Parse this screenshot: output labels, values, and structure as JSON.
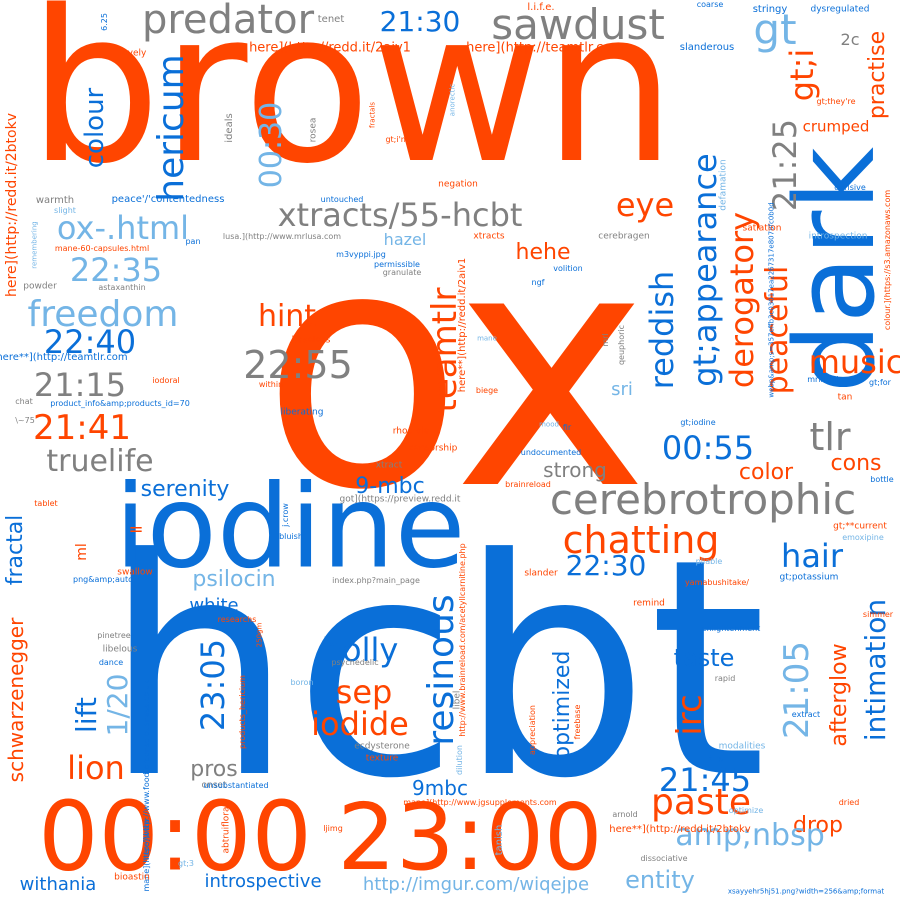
{
  "palette": {
    "orange": "#ff4500",
    "blue": "#0a6fd8",
    "gray": "#808080",
    "light_blue": "#74b5e6"
  },
  "words": {
    "brown": "brown",
    "ox": "ox",
    "hcbt": "hcbt",
    "iodine": "iodine",
    "dark": "dark",
    "t0000": "00:00",
    "t2300": "23:00",
    "predator": "predator",
    "sawdust": "sawdust",
    "t2130": "21:30",
    "gt": "gt",
    "gt_i": "gt;i",
    "hericum": "hericum",
    "colour": "colour",
    "t0030": "00:30",
    "xtracts": "xtracts/55-hcbt",
    "ox_html": "ox-.html",
    "eye": "eye",
    "t2125": "21:25",
    "t2235": "22:35",
    "freedom": "freedom",
    "t2240": "22:40",
    "hint": "hint",
    "t2255": "22:55",
    "teamtlr": "teamtlr",
    "reddish": "reddish",
    "gt_appearance": "gt;appearance",
    "derogatory": "derogatory",
    "peaceful": "peaceful",
    "music": "music",
    "practise": "practise",
    "crumped": "crumped",
    "t2115": "21:15",
    "t2141": "21:41",
    "truelife": "truelife",
    "tlr": "tlr",
    "t0055": "00:55",
    "cons": "cons",
    "color": "color",
    "serenity": "serenity",
    "mbc_9": "9-mbc",
    "cerebrotrophic": "cerebrotrophic",
    "chatting": "chatting",
    "t2230": "22:30",
    "hair": "hair",
    "psilocin": "psilocin",
    "white": "white",
    "holly": "holly",
    "sep": "sep",
    "iodide": "iodide",
    "resinous": "resinous",
    "irc": "irc",
    "optimized": "optimized",
    "taste": "taste",
    "t2105": "21:05",
    "intimation": "intimation",
    "afterglow": "afterglow",
    "t2305": "23:05",
    "lift": "lift",
    "one_20": "1/20",
    "lion": "lion",
    "fractal": "fractal",
    "schwarzenegger": "schwarzenegger",
    "pros": "pros",
    "mbc9": "9mbc",
    "paste": "paste",
    "t2145": "21:45",
    "drop": "drop",
    "amp_nbsp": "amp;nbsp",
    "entity": "entity",
    "introspective": "introspective",
    "withania": "withania",
    "imgur": "http://imgur.com/wiqejpe",
    "strong": "strong",
    "hazel": "hazel",
    "hehe": "hehe",
    "sri": "sri",
    "ml": "ml",
    "eq": "=",
    "twoc": "2c",
    "here_2aiv1_a": "here](http://redd.it/2aiv1",
    "here_teamtlr_a": "here](http://teamtlr.com",
    "here_2btokv_v": "here](http://redd.it/2btokv",
    "here_2aiv1_v": "here**](http://redd.it/2aiv1",
    "here_teamtlr_b": "here**](http://teamtlr.com",
    "here_2btokv_b": "here**](http://redd.it/2btokv",
    "tenet": "tenet",
    "life": "l.i.f.e.",
    "coarse": "coarse",
    "stringy": "stringy",
    "dysregulated": "dysregulated",
    "slanderous": "slanderous",
    "lovely": "lovely",
    "six25": "6.25",
    "gt_theyre": "gt;they're",
    "gt_im": "gt;i'm",
    "ideals": "ideals",
    "rosea": "rosea",
    "fractals": "fractals",
    "anorectic": "anorectic",
    "webp_hash": "webp&amp;s=357effb3c03017ea2267317e8078fc0b0d",
    "negation": "negation",
    "warmth": "warmth",
    "slight": "slight",
    "peace_contentedness": "peace'/'contentedness",
    "untouched": "untouched",
    "defamation": "defamation",
    "derisive": "derisive",
    "introspection": "introspection",
    "s3": "colour.](https://s3.amazonaws.com",
    "satiation": "satiation",
    "remembering": "remembering",
    "mane60": "mane-60-capsules.html",
    "pan": "pan",
    "mrlusa": "lusa.](http://www.mrlusa.com",
    "xtracts_small": "xtracts",
    "cerebragen": "cerebragen",
    "powder": "powder",
    "astaxanthin": "astaxanthin",
    "m3vyppi": "m3vyppi.jpg",
    "permissible": "permissible",
    "granulate": "granulate",
    "volition": "volition",
    "ngf": "ngf",
    "qeuphoric": "qeuphoric",
    "mrl": "mrl",
    "mane": "mane",
    "baseless": "baseless",
    "within": "within",
    "iodoral": "iodoral",
    "here_teamtlr_c": "here**](http://teamtlr.com",
    "chat": "chat",
    "product_info": "product_info&amp;products_id=70",
    "liberating": "liberating",
    "biege": "biege",
    "mrlhtml": "mrlhtml",
    "gt_for": "gt;for",
    "tan": "tan",
    "tilde75": "\\~75",
    "rhodiola": "rhodiola",
    "censorship": "censorship",
    "gt_iodine": "gt;iodine",
    "mood": "mood",
    "fir": "fir",
    "undocumented": "undocumented",
    "xtract": "xtract",
    "brainreload": "brainreload",
    "bottle": "bottle",
    "tablet": "tablet",
    "got_reddit": "got](https://preview.redd.it",
    "j_crow": "j.crow",
    "bluish": "bluish",
    "gt_current": "gt;**current",
    "emoxipine": "emoxipine",
    "acetyl": "http://www.brainreload.com/acetyllcarnitine.php",
    "png_auto": "png&amp;auto",
    "swallow": "swallow",
    "index_php": "index.php?main_page",
    "slander": "slander",
    "pliable": "pliable",
    "yamabushitake": "yamabushitake/",
    "gt_potassium": "gt;potassium",
    "remind": "remind",
    "researchs": "researchs",
    "libelous": "libelous",
    "dance": "dance",
    "onset": "onset",
    "twentyfifty": "250gm",
    "psychedelic": "psychedelic",
    "libel": "libel",
    "pinetree": "pinetree",
    "enlightenment": "enlightenment",
    "simmer": "simmer",
    "boron": "boron",
    "rapid": "rapid",
    "products_hericium": "products_hericium",
    "foodforconsciousness": "here](http://www.foodforconsciousness.co.uk",
    "ecdysterone": "ecdysterone",
    "appreciation": "appreciation",
    "freebase": "freebase",
    "texture": "texture",
    "dilution": "dilution",
    "extract": "extract",
    "modalities": "modalities",
    "unsubstantiated": "unsubstantiated",
    "abtruiflora": "abtruiflora",
    "tlrs": "tlrs",
    "jgsupplements": "mane](http://www.jgsupplements.com",
    "tanish": "tanish",
    "arnold": "arnold",
    "optimize": "optimize",
    "dried": "dried",
    "mane_url": "mane](http://www",
    "ljimg": "ljimg",
    "dissociative": "dissociative",
    "gt3": "gt;3",
    "bioastin": "bioastin",
    "xsayy": "xsayyehr5hj51.png?width=256&amp;format"
  }
}
